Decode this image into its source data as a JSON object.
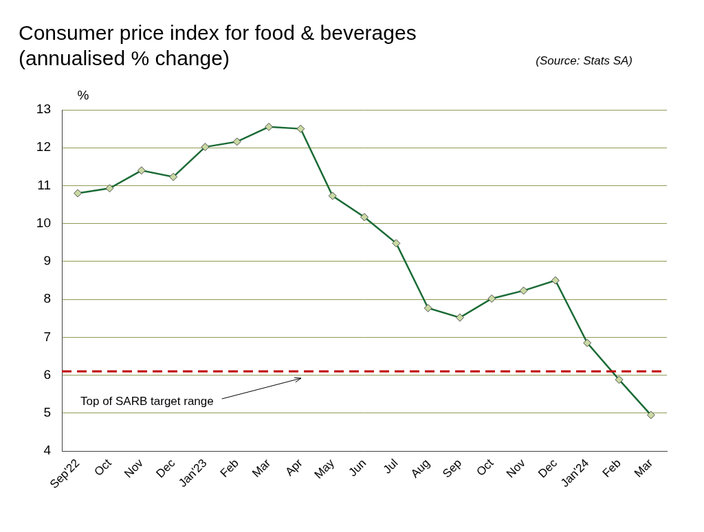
{
  "chart_data": {
    "type": "line",
    "title": "Consumer price index for food & beverages",
    "subtitle": "(annualised % change)",
    "source": "(Source: Stats SA)",
    "y_label": "%",
    "categories": [
      "Sep'22",
      "Oct",
      "Nov",
      "Dec",
      "Jan'23",
      "Feb",
      "Mar",
      "Apr",
      "May",
      "Jun",
      "Jul",
      "Aug",
      "Sep",
      "Oct",
      "Nov",
      "Dec",
      "Jan'24",
      "Feb",
      "Mar"
    ],
    "values": [
      10.8,
      10.93,
      11.4,
      11.23,
      12.02,
      12.16,
      12.55,
      12.5,
      10.73,
      10.17,
      9.48,
      7.77,
      7.52,
      8.02,
      8.23,
      8.5,
      6.85,
      5.88,
      4.95
    ],
    "color": "#1a6b35",
    "marker": "diamond",
    "ylim": [
      4,
      13
    ],
    "yticks": [
      4,
      5,
      6,
      7,
      8,
      9,
      10,
      11,
      12,
      13
    ],
    "grid": true,
    "reference_line": {
      "value": 6.1,
      "label": "Top of SARB target range",
      "color": "#c00000",
      "line_style": "dashed"
    }
  }
}
